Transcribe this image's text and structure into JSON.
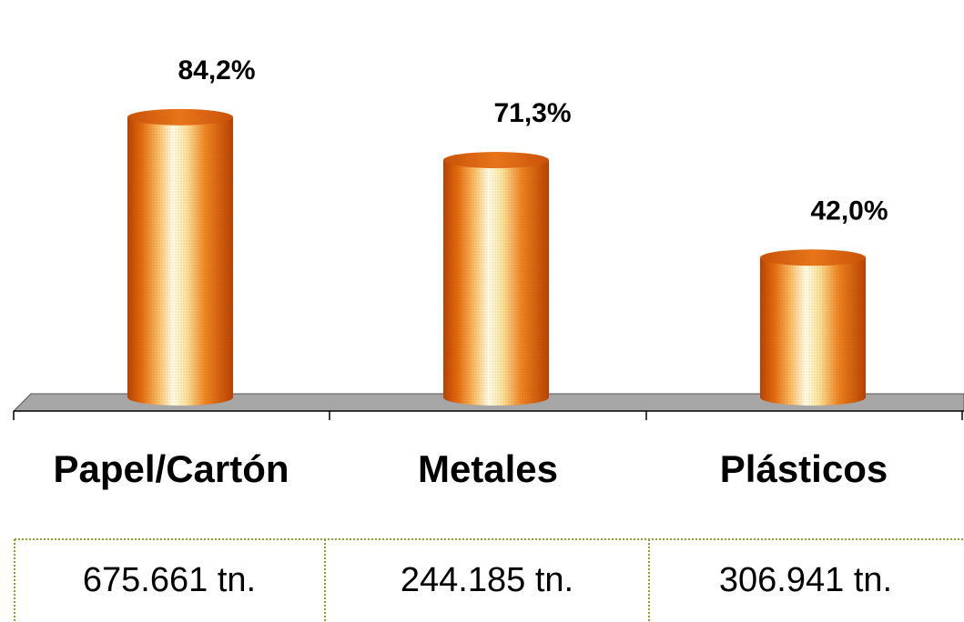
{
  "chart_data": {
    "type": "bar",
    "categories": [
      "Papel/Cartón",
      "Metales",
      "Plásticos"
    ],
    "values": [
      84.2,
      71.3,
      42.0
    ],
    "data_labels": [
      "84,2%",
      "71,3%",
      "42,0%"
    ],
    "ylim": [
      0,
      100
    ],
    "grid": false,
    "legend": "none",
    "title": "",
    "xlabel": "",
    "ylabel": "",
    "table_row": [
      "675.661 tn.",
      "244.185 tn.",
      "306.941 tn."
    ]
  },
  "colors": {
    "bar_dark": "#c24a04",
    "bar_mid": "#f08a1c",
    "bar_highlight": "#ffffe6",
    "floor": "#a6a6a6",
    "table_border": "#999933"
  }
}
